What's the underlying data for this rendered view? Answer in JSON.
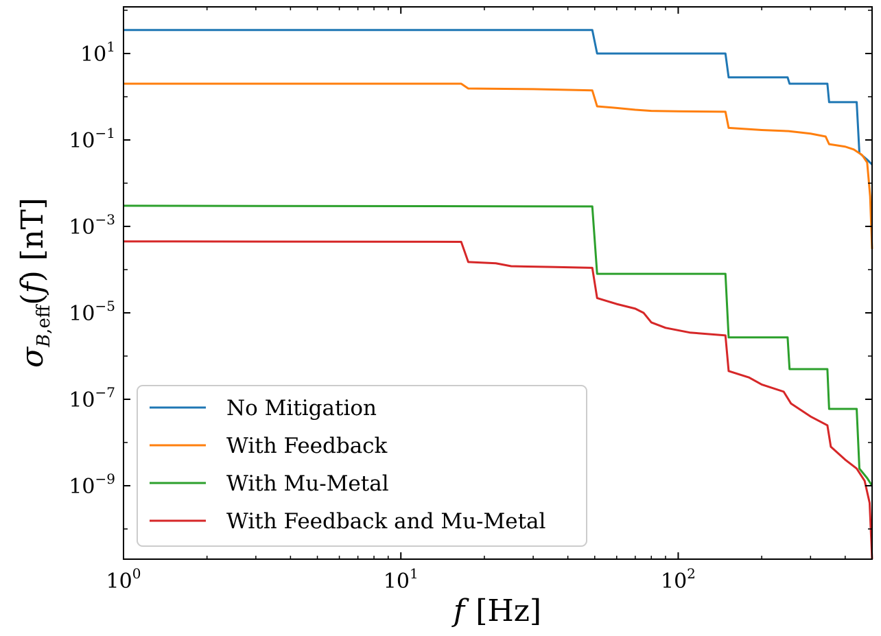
{
  "chart_data": {
    "type": "line",
    "title": "",
    "xlabel": "f [Hz]",
    "ylabel": "σ_{B,eff}(f) [nT]",
    "x_scale": "log",
    "y_scale": "log",
    "xlim": [
      1,
      500
    ],
    "ylim": [
      2e-11,
      120
    ],
    "grid": false,
    "legend_position": "lower-left",
    "x_ticks": [
      {
        "value": 1,
        "base": "10",
        "exp": "0"
      },
      {
        "value": 10,
        "base": "10",
        "exp": "1"
      },
      {
        "value": 100,
        "base": "10",
        "exp": "2"
      }
    ],
    "y_ticks": [
      {
        "value": 10,
        "base": "10",
        "exp": "1"
      },
      {
        "value": 0.1,
        "base": "10",
        "exp": "−1"
      },
      {
        "value": 0.001,
        "base": "10",
        "exp": "−3"
      },
      {
        "value": 1e-05,
        "base": "10",
        "exp": "−5"
      },
      {
        "value": 1e-07,
        "base": "10",
        "exp": "−7"
      },
      {
        "value": 1e-09,
        "base": "10",
        "exp": "−9"
      }
    ],
    "series": [
      {
        "name": "No Mitigation",
        "color": "#1f77b4",
        "points": [
          [
            1,
            35
          ],
          [
            49,
            35
          ],
          [
            51,
            10
          ],
          [
            148,
            10
          ],
          [
            152,
            2.8
          ],
          [
            248,
            2.8
          ],
          [
            252,
            2.0
          ],
          [
            345,
            2.0
          ],
          [
            350,
            0.75
          ],
          [
            440,
            0.75
          ],
          [
            450,
            0.05
          ],
          [
            480,
            0.035
          ],
          [
            500,
            0.027
          ]
        ]
      },
      {
        "name": "With Feedback",
        "color": "#ff7f0e",
        "points": [
          [
            1,
            2.0
          ],
          [
            16.5,
            2.0
          ],
          [
            17.5,
            1.55
          ],
          [
            30,
            1.5
          ],
          [
            49,
            1.4
          ],
          [
            51,
            0.6
          ],
          [
            60,
            0.55
          ],
          [
            70,
            0.5
          ],
          [
            80,
            0.47
          ],
          [
            100,
            0.46
          ],
          [
            148,
            0.45
          ],
          [
            152,
            0.19
          ],
          [
            200,
            0.17
          ],
          [
            250,
            0.16
          ],
          [
            300,
            0.14
          ],
          [
            340,
            0.12
          ],
          [
            350,
            0.08
          ],
          [
            400,
            0.07
          ],
          [
            430,
            0.06
          ],
          [
            460,
            0.045
          ],
          [
            480,
            0.03
          ],
          [
            492,
            0.005
          ],
          [
            500,
            0.0003
          ]
        ]
      },
      {
        "name": "With Mu-Metal",
        "color": "#2ca02c",
        "points": [
          [
            1,
            0.003
          ],
          [
            49,
            0.0029
          ],
          [
            51,
            8e-05
          ],
          [
            148,
            8e-05
          ],
          [
            152,
            2.7e-06
          ],
          [
            248,
            2.7e-06
          ],
          [
            252,
            5e-07
          ],
          [
            345,
            5e-07
          ],
          [
            350,
            6e-08
          ],
          [
            440,
            6e-08
          ],
          [
            450,
            2.5e-09
          ],
          [
            480,
            1.5e-09
          ],
          [
            500,
            1e-09
          ]
        ]
      },
      {
        "name": "With Feedback and Mu-Metal",
        "color": "#d62728",
        "points": [
          [
            1,
            0.00045
          ],
          [
            16.5,
            0.00044
          ],
          [
            17.5,
            0.00015
          ],
          [
            22,
            0.00014
          ],
          [
            25,
            0.00012
          ],
          [
            35,
            0.000115
          ],
          [
            49,
            0.00011
          ],
          [
            51,
            2.2e-05
          ],
          [
            60,
            1.6e-05
          ],
          [
            70,
            1.25e-05
          ],
          [
            75,
            1e-05
          ],
          [
            80,
            6e-06
          ],
          [
            90,
            4.5e-06
          ],
          [
            110,
            3.5e-06
          ],
          [
            148,
            3e-06
          ],
          [
            152,
            4.5e-07
          ],
          [
            180,
            3.2e-07
          ],
          [
            200,
            2.2e-07
          ],
          [
            240,
            1.5e-07
          ],
          [
            255,
            8e-08
          ],
          [
            300,
            4e-08
          ],
          [
            345,
            2.5e-08
          ],
          [
            355,
            8e-09
          ],
          [
            400,
            4e-09
          ],
          [
            440,
            2.5e-09
          ],
          [
            470,
            1.3e-09
          ],
          [
            490,
            4e-10
          ],
          [
            500,
            2e-11
          ]
        ]
      }
    ]
  }
}
